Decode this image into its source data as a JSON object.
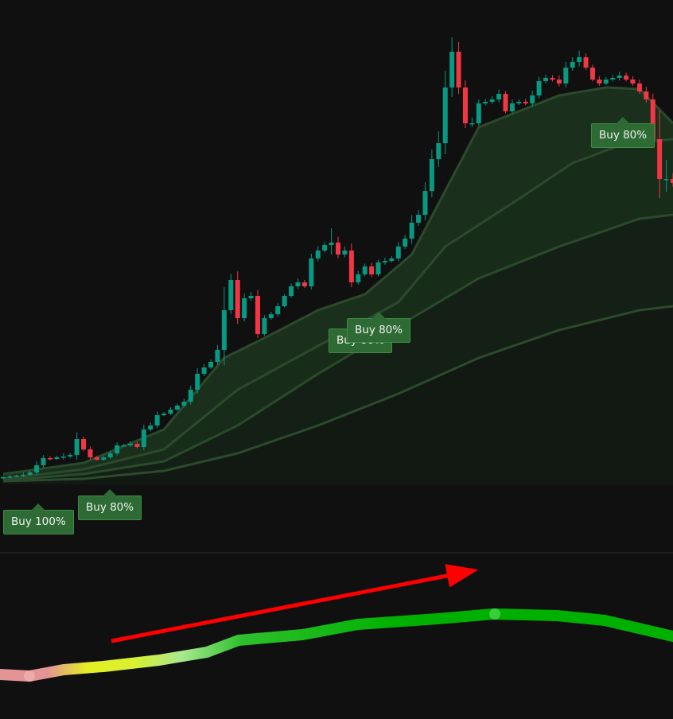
{
  "chart_data": [
    {
      "type": "candlestick",
      "title": "",
      "colors": {
        "up": "#089981",
        "down": "#f23645",
        "band_fill": "#1f3a22",
        "band_line": "#2b4a2c",
        "background": "#101010"
      },
      "closes": [
        100,
        101,
        102,
        103,
        106,
        115,
        124,
        123,
        125,
        126,
        128,
        148,
        135,
        125,
        122,
        125,
        130,
        140,
        140,
        142,
        138,
        160,
        165,
        178,
        180,
        185,
        190,
        195,
        210,
        230,
        238,
        245,
        260,
        310,
        348,
        300,
        325,
        328,
        280,
        300,
        305,
        315,
        328,
        340,
        345,
        340,
        375,
        385,
        392,
        395,
        380,
        385,
        345,
        355,
        365,
        355,
        370,
        372,
        375,
        390,
        400,
        420,
        430,
        460,
        500,
        520,
        590,
        635,
        590,
        545,
        545,
        570,
        572,
        575,
        582,
        560,
        570,
        572,
        570,
        580,
        598,
        602,
        600,
        595,
        615,
        622,
        628,
        615,
        600,
        595,
        600,
        602,
        605,
        600,
        595,
        585,
        575,
        525,
        475,
        475,
        470
      ],
      "wicks": [
        3,
        4,
        2,
        5,
        3,
        8,
        6,
        4,
        3,
        7,
        4,
        14,
        5,
        6,
        3,
        4,
        5,
        6,
        3,
        5,
        4,
        10,
        6,
        8,
        3,
        5,
        4,
        6,
        9,
        12,
        7,
        5,
        10,
        48,
        12,
        18,
        10,
        8,
        12,
        6,
        5,
        7,
        4,
        6,
        8,
        5,
        10,
        9,
        6,
        30,
        12,
        9,
        15,
        7,
        6,
        8,
        6,
        7,
        5,
        9,
        8,
        16,
        10,
        18,
        20,
        25,
        35,
        30,
        20,
        15,
        12,
        8,
        6,
        7,
        9,
        6,
        8,
        5,
        6,
        10,
        9,
        7,
        6,
        9,
        12,
        10,
        14,
        8,
        6,
        7,
        5,
        6,
        8,
        6,
        7,
        8,
        10,
        12,
        60,
        40,
        12
      ],
      "opens_from_previous_close": true,
      "bands": [
        {
          "index": [
            0,
            12,
            24,
            33,
            39,
            47,
            54,
            61,
            66,
            71,
            83,
            90,
            95,
            100
          ],
          "values": [
            104,
            118,
            160,
            250,
            275,
            310,
            330,
            380,
            460,
            540,
            580,
            590,
            588,
            545
          ]
        },
        {
          "index": [
            0,
            12,
            24,
            35,
            47,
            59,
            66,
            77,
            85,
            93,
            100
          ],
          "values": [
            98,
            110,
            135,
            210,
            265,
            320,
            390,
            450,
            495,
            520,
            525
          ]
        },
        {
          "index": [
            0,
            12,
            24,
            35,
            47,
            59,
            71,
            83,
            95,
            100
          ],
          "values": [
            96,
            104,
            120,
            165,
            230,
            290,
            350,
            390,
            425,
            430
          ]
        },
        {
          "index": [
            0,
            12,
            24,
            35,
            47,
            59,
            71,
            83,
            95,
            100
          ],
          "values": [
            95,
            98,
            108,
            130,
            165,
            205,
            250,
            285,
            310,
            315
          ]
        }
      ],
      "signals": [
        {
          "label": "Buy 100%",
          "index": 5
        },
        {
          "label": "Buy 80%",
          "index": 15
        },
        {
          "label": "Buy 80%",
          "index": 52
        },
        {
          "label": "Buy 80%",
          "index": 55
        },
        {
          "label": "Buy 80%",
          "index": 92
        }
      ]
    },
    {
      "type": "line",
      "title": "",
      "colors": [
        "#e39494",
        "#e4ef22",
        "#a8e890",
        "#2cc02c",
        "#00b000"
      ],
      "x": [
        0,
        37,
        80,
        130,
        200,
        260,
        300,
        380,
        450,
        550,
        620,
        700,
        760,
        846
      ],
      "values": [
        52,
        50,
        58,
        62,
        70,
        80,
        95,
        102,
        115,
        122,
        128,
        126,
        120,
        100
      ],
      "annotation": {
        "type": "arrow",
        "color": "#ff0000",
        "from": [
          140,
          94
        ],
        "to": [
          600,
          184
        ]
      }
    }
  ]
}
